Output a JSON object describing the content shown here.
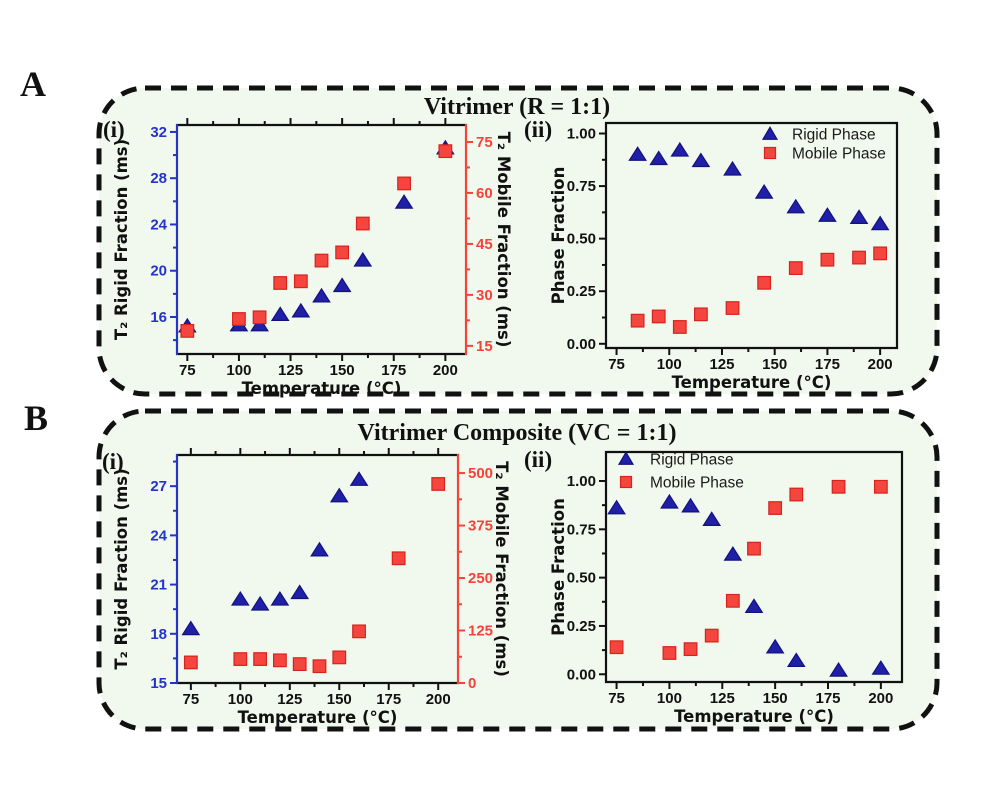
{
  "figure": {
    "panels": [
      {
        "letter": "A",
        "title": "Vitrimer (R = 1:1)",
        "subplots": [
          "(i)",
          "(ii)"
        ]
      },
      {
        "letter": "B",
        "title": "Vitrimer Composite (VC = 1:1)",
        "subplots": [
          "(i)",
          "(ii)"
        ]
      }
    ]
  },
  "colors": {
    "rigid_blue": "#1f1fa8",
    "rigid_blue_edge": "#12127d",
    "mobile_red": "#f4453e",
    "mobile_red_edge": "#d6241d",
    "left_axis_blue": "#2433c9",
    "right_axis_red": "#f5423a",
    "panel_fill": "#f1f8ed",
    "border_black": "#111111",
    "text_black": "#111111"
  },
  "chart_data": [
    {
      "id": "a-i",
      "type": "scatter",
      "panel": "A",
      "sub": "(i)",
      "xlabel": "Temperature (°C)",
      "x": {
        "lim": [
          70,
          210
        ],
        "ticks": [
          75,
          100,
          125,
          150,
          175,
          200
        ],
        "tick_labels": [
          "75",
          "100",
          "125",
          "150",
          "175",
          "200"
        ],
        "minor": [
          87.5,
          112.5,
          137.5,
          162.5,
          187.5
        ]
      },
      "left": {
        "label": "T₂ Rigid Fraction (ms)",
        "color": "blue",
        "lim": [
          12.8,
          32.6
        ],
        "ticks": [
          16,
          20,
          24,
          28,
          32
        ],
        "tick_labels": [
          "16",
          "20",
          "24",
          "28",
          "32"
        ],
        "minor": [
          14,
          18,
          22,
          26,
          30
        ]
      },
      "right": {
        "label": "T₂ Mobile Fraction (ms)",
        "color": "red",
        "lim": [
          12.6,
          80
        ],
        "ticks": [
          15,
          30,
          45,
          60,
          75
        ],
        "tick_labels": [
          "15",
          "30",
          "45",
          "60",
          "75"
        ],
        "minor": [
          22.5,
          37.5,
          52.5,
          67.5
        ]
      },
      "top_ticks": true,
      "series": [
        {
          "name": "T₂ Rigid Fraction",
          "slug": "rigid",
          "axis": "left",
          "marker": "triangle",
          "color_key": "rigid_blue",
          "x": [
            75,
            100,
            110,
            120,
            130,
            140,
            150,
            160,
            180,
            200
          ],
          "y": [
            15.2,
            15.3,
            15.3,
            16.2,
            16.5,
            17.8,
            18.7,
            20.9,
            25.9,
            30.6
          ]
        },
        {
          "name": "T₂ Mobile Fraction",
          "slug": "mobile",
          "axis": "right",
          "marker": "square",
          "color_key": "mobile_red",
          "x": [
            75,
            100,
            110,
            120,
            130,
            140,
            150,
            160,
            180,
            200
          ],
          "y": [
            19.4,
            22.9,
            23.4,
            33.5,
            34.0,
            40.1,
            42.5,
            51.0,
            62.8,
            72.3
          ]
        }
      ]
    },
    {
      "id": "a-ii",
      "type": "scatter",
      "panel": "A",
      "sub": "(ii)",
      "xlabel": "Temperature (°C)",
      "x": {
        "lim": [
          70,
          208
        ],
        "ticks": [
          75,
          100,
          125,
          150,
          175,
          200
        ],
        "tick_labels": [
          "75",
          "100",
          "125",
          "150",
          "175",
          "200"
        ],
        "minor": [
          87.5,
          112.5,
          137.5,
          162.5,
          187.5
        ]
      },
      "left": {
        "label": "Phase Fraction",
        "color": "black",
        "lim": [
          -0.02,
          1.05
        ],
        "ticks": [
          0,
          0.25,
          0.5,
          0.75,
          1
        ],
        "tick_labels": [
          "0.00",
          "0.25",
          "0.50",
          "0.75",
          "1.00"
        ],
        "minor": [
          0.125,
          0.375,
          0.625,
          0.875
        ]
      },
      "top_ticks": false,
      "legend": {
        "position": "top-right",
        "entries": [
          {
            "label": "Rigid Phase",
            "marker": "triangle",
            "color_key": "rigid_blue"
          },
          {
            "label": "Mobile Phase",
            "marker": "square",
            "color_key": "mobile_red"
          }
        ]
      },
      "series": [
        {
          "name": "Rigid Phase",
          "slug": "rigid",
          "axis": "left",
          "marker": "triangle",
          "color_key": "rigid_blue",
          "x": [
            85,
            95,
            105,
            115,
            130,
            145,
            160,
            175,
            190,
            200
          ],
          "y": [
            0.9,
            0.88,
            0.92,
            0.87,
            0.83,
            0.72,
            0.65,
            0.61,
            0.6,
            0.57
          ]
        },
        {
          "name": "Mobile Phase",
          "slug": "mobile",
          "axis": "left",
          "marker": "square",
          "color_key": "mobile_red",
          "x": [
            85,
            95,
            105,
            115,
            130,
            145,
            160,
            175,
            190,
            200
          ],
          "y": [
            0.11,
            0.13,
            0.08,
            0.14,
            0.17,
            0.29,
            0.36,
            0.4,
            0.41,
            0.43
          ]
        }
      ]
    },
    {
      "id": "b-i",
      "type": "scatter",
      "panel": "B",
      "sub": "(i)",
      "xlabel": "Temperature (°C)",
      "x": {
        "lim": [
          68,
          210
        ],
        "ticks": [
          75,
          100,
          125,
          150,
          175,
          200
        ],
        "tick_labels": [
          "75",
          "100",
          "125",
          "150",
          "175",
          "200"
        ],
        "minor": [
          87.5,
          112.5,
          137.5,
          162.5,
          187.5
        ]
      },
      "left": {
        "label": "T₂ Rigid Fraction (ms)",
        "color": "blue",
        "lim": [
          15,
          28.9
        ],
        "ticks": [
          15,
          18,
          21,
          24,
          27
        ],
        "tick_labels": [
          "15",
          "18",
          "21",
          "24",
          "27"
        ],
        "minor": [
          16.5,
          19.5,
          22.5,
          25.5,
          28.5
        ]
      },
      "right": {
        "label": "T₂ Mobile Fraction (ms)",
        "color": "red",
        "lim": [
          0,
          543
        ],
        "ticks": [
          0,
          125,
          250,
          375,
          500
        ],
        "tick_labels": [
          "0",
          "125",
          "250",
          "375",
          "500"
        ],
        "minor": [
          62.5,
          187.5,
          312.5,
          437.5
        ]
      },
      "top_ticks": true,
      "series": [
        {
          "name": "T₂ Rigid Fraction",
          "slug": "rigid",
          "axis": "left",
          "marker": "triangle",
          "color_key": "rigid_blue",
          "x": [
            75,
            100,
            110,
            120,
            130,
            140,
            150,
            160
          ],
          "y": [
            18.3,
            20.1,
            19.8,
            20.1,
            20.5,
            23.1,
            26.4,
            27.4
          ]
        },
        {
          "name": "T₂ Mobile Fraction",
          "slug": "mobile",
          "axis": "right",
          "marker": "square",
          "color_key": "mobile_red",
          "x": [
            75,
            100,
            110,
            120,
            130,
            140,
            150,
            160,
            180,
            200
          ],
          "y": [
            49,
            57,
            57,
            54,
            45,
            40,
            61,
            123,
            297,
            474
          ]
        }
      ]
    },
    {
      "id": "b-ii",
      "type": "scatter",
      "panel": "B",
      "sub": "(ii)",
      "xlabel": "Temperature (°C)",
      "x": {
        "lim": [
          70,
          210
        ],
        "ticks": [
          75,
          100,
          125,
          150,
          175,
          200
        ],
        "tick_labels": [
          "75",
          "100",
          "125",
          "150",
          "175",
          "200"
        ],
        "minor": [
          87.5,
          112.5,
          137.5,
          162.5,
          187.5
        ]
      },
      "left": {
        "label": "Phase Fraction",
        "color": "black",
        "lim": [
          -0.04,
          1.15
        ],
        "ticks": [
          0,
          0.25,
          0.5,
          0.75,
          1
        ],
        "tick_labels": [
          "0.00",
          "0.25",
          "0.50",
          "0.75",
          "1.00"
        ],
        "minor": [
          0.125,
          0.375,
          0.625,
          0.875
        ]
      },
      "top_ticks": false,
      "legend": {
        "position": "top-left",
        "entries": [
          {
            "label": "Rigid Phase",
            "marker": "triangle",
            "color_key": "rigid_blue"
          },
          {
            "label": "Mobile Phase",
            "marker": "square",
            "color_key": "mobile_red"
          }
        ]
      },
      "series": [
        {
          "name": "Rigid Phase",
          "slug": "rigid",
          "axis": "left",
          "marker": "triangle",
          "color_key": "rigid_blue",
          "x": [
            75,
            100,
            110,
            120,
            130,
            140,
            150,
            160,
            180,
            200
          ],
          "y": [
            0.86,
            0.89,
            0.87,
            0.8,
            0.62,
            0.35,
            0.14,
            0.07,
            0.02,
            0.03
          ]
        },
        {
          "name": "Mobile Phase",
          "slug": "mobile",
          "axis": "left",
          "marker": "square",
          "color_key": "mobile_red",
          "x": [
            75,
            100,
            110,
            120,
            130,
            140,
            150,
            160,
            180,
            200
          ],
          "y": [
            0.14,
            0.11,
            0.13,
            0.2,
            0.38,
            0.65,
            0.86,
            0.93,
            0.97,
            0.97
          ]
        }
      ]
    }
  ]
}
